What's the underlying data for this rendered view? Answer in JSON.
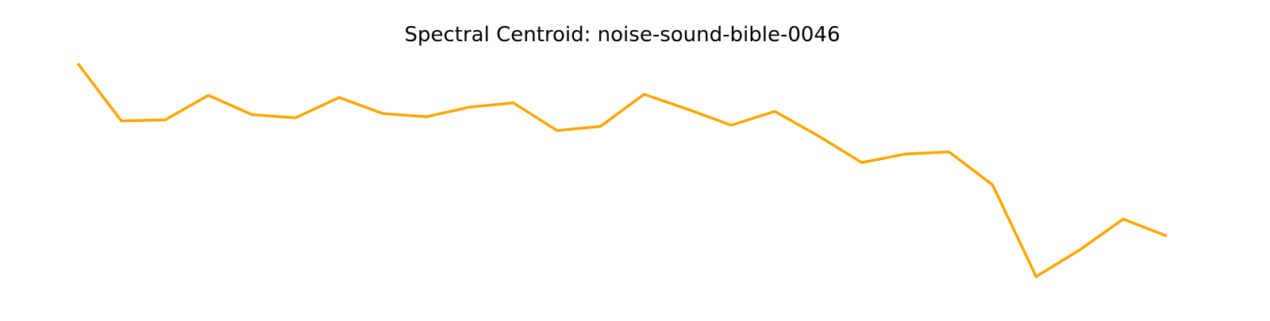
{
  "chart_data": {
    "type": "line",
    "title": "Spectral Centroid: noise-sound-bible-0046",
    "xlabel": "",
    "ylabel": "",
    "axes_visible": false,
    "grid": false,
    "legend": "none",
    "ylim": [
      0,
      100
    ],
    "series": [
      {
        "color": "#FFA500",
        "x": [
          0,
          1,
          2,
          3,
          4,
          5,
          6,
          7,
          8,
          9,
          10,
          11,
          12,
          13,
          14,
          15,
          16,
          17,
          18,
          19,
          20,
          21,
          22,
          23,
          24,
          25
        ],
        "values": [
          100,
          73,
          73.5,
          85,
          76,
          74.5,
          84,
          76.5,
          75,
          79.5,
          81.5,
          68.5,
          70.5,
          85.5,
          78.5,
          71,
          77.5,
          66,
          53.5,
          57.5,
          58.5,
          43,
          0,
          12.5,
          27,
          19
        ]
      }
    ]
  }
}
